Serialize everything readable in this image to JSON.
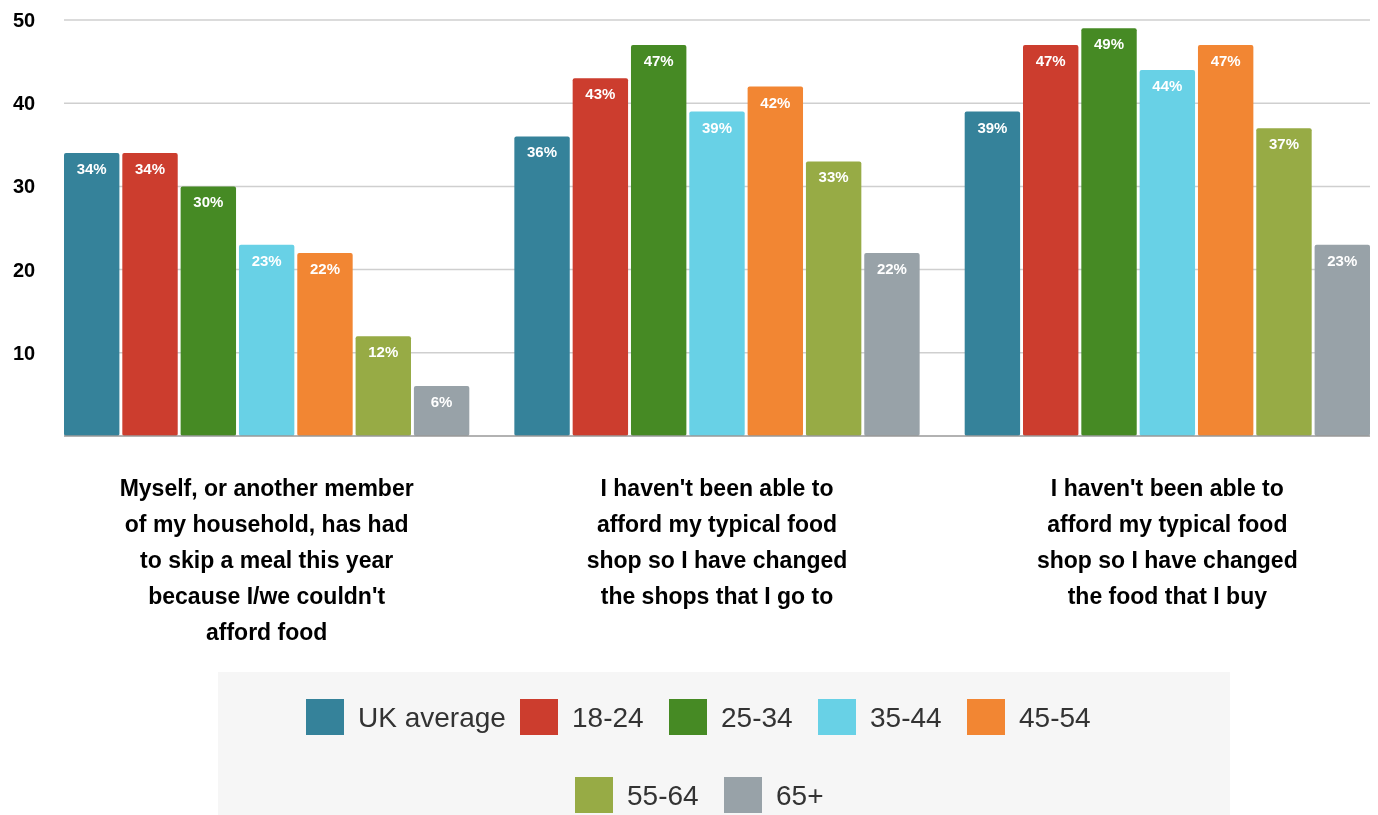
{
  "chart_data": {
    "type": "bar",
    "categories": [
      "Myself, or another member of my household, has had to skip a meal this year because I/we couldn't afford food",
      "I haven't been able to afford my typical food shop so I have changed the shops that I go to",
      "I haven't been able to afford my typical food shop so I have changed the food that I buy"
    ],
    "series": [
      {
        "name": "UK average",
        "color": "#35829a",
        "values": [
          34,
          36,
          39
        ],
        "value_labels": [
          "34%",
          "36%",
          "39%"
        ]
      },
      {
        "name": "18-24",
        "color": "#cc3d2e",
        "values": [
          34,
          43,
          47
        ],
        "value_labels": [
          "34%",
          "43%",
          "47%"
        ]
      },
      {
        "name": "25-34",
        "color": "#468a24",
        "values": [
          30,
          47,
          49
        ],
        "value_labels": [
          "30%",
          "47%",
          "49%"
        ]
      },
      {
        "name": "35-44",
        "color": "#68d1e6",
        "values": [
          23,
          39,
          44
        ],
        "value_labels": [
          "23%",
          "39%",
          "44%"
        ]
      },
      {
        "name": "45-54",
        "color": "#f28633",
        "values": [
          22,
          42,
          47
        ],
        "value_labels": [
          "22%",
          "42%",
          "47%"
        ]
      },
      {
        "name": "55-64",
        "color": "#97ab45",
        "values": [
          12,
          33,
          37
        ],
        "value_labels": [
          "12%",
          "33%",
          "37%"
        ]
      },
      {
        "name": "65+",
        "color": "#98a2a8",
        "values": [
          6,
          22,
          23
        ],
        "value_labels": [
          "6%",
          "22%",
          "23%"
        ]
      }
    ],
    "ylim": [
      0,
      50
    ],
    "yticks": [
      10,
      20,
      30,
      40,
      50
    ],
    "grid": "y",
    "legend": "bottom"
  }
}
